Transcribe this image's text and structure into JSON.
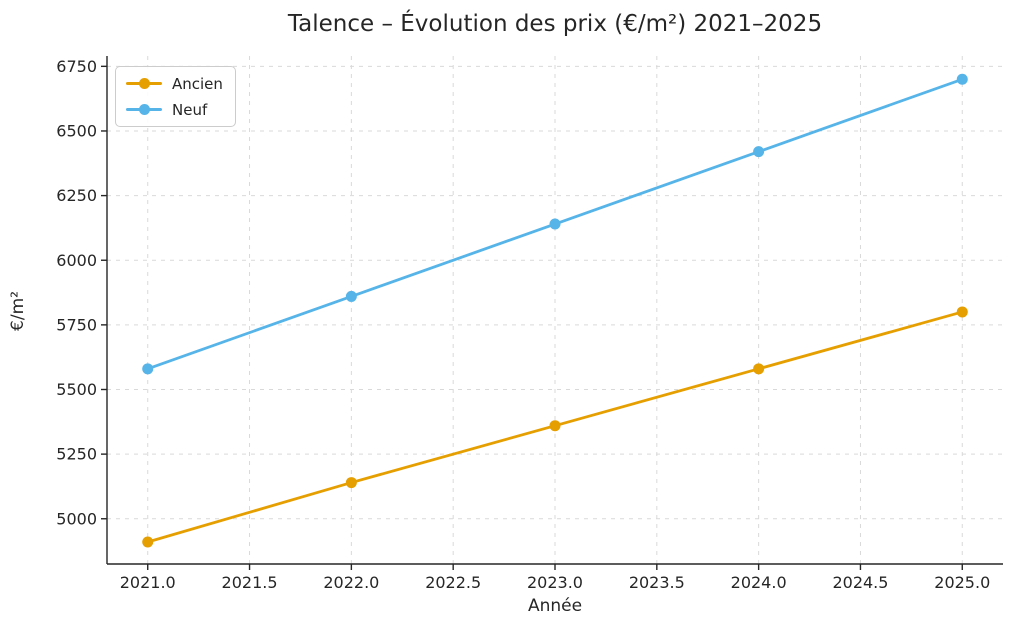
{
  "chart_data": {
    "type": "line",
    "title": "Talence – Évolution des prix (€/m²) 2021–2025",
    "xlabel": "Année",
    "ylabel": "€/m²",
    "x": [
      2021,
      2022,
      2023,
      2024,
      2025
    ],
    "series": [
      {
        "name": "Ancien",
        "color": "#E69F00",
        "values": [
          4910,
          5140,
          5360,
          5580,
          5800
        ]
      },
      {
        "name": "Neuf",
        "color": "#56B4E9",
        "values": [
          5580,
          5860,
          6140,
          6420,
          6700
        ]
      }
    ],
    "xticks": [
      2021.0,
      2021.5,
      2022.0,
      2022.5,
      2023.0,
      2023.5,
      2024.0,
      2024.5,
      2025.0
    ],
    "xtick_labels": [
      "2021.0",
      "2021.5",
      "2022.0",
      "2022.5",
      "2023.0",
      "2023.5",
      "2024.0",
      "2024.5",
      "2025.0"
    ],
    "yticks": [
      5000,
      5250,
      5500,
      5750,
      6000,
      6250,
      6500,
      6750
    ],
    "ytick_labels": [
      "5000",
      "5250",
      "5500",
      "5750",
      "6000",
      "6250",
      "6500",
      "6750"
    ],
    "xlim": [
      2020.8,
      2025.2
    ],
    "ylim": [
      4825,
      6790
    ],
    "grid": true,
    "grid_style": "dashed",
    "legend_position": "upper left",
    "marker": "circle"
  },
  "style": {
    "background": "#ffffff",
    "grid_color": "#d9d9d9",
    "spine_color": "#262626",
    "text_color": "#262626",
    "tick_label_size": 16,
    "line_width": 2.8,
    "marker_radius": 5.5
  }
}
